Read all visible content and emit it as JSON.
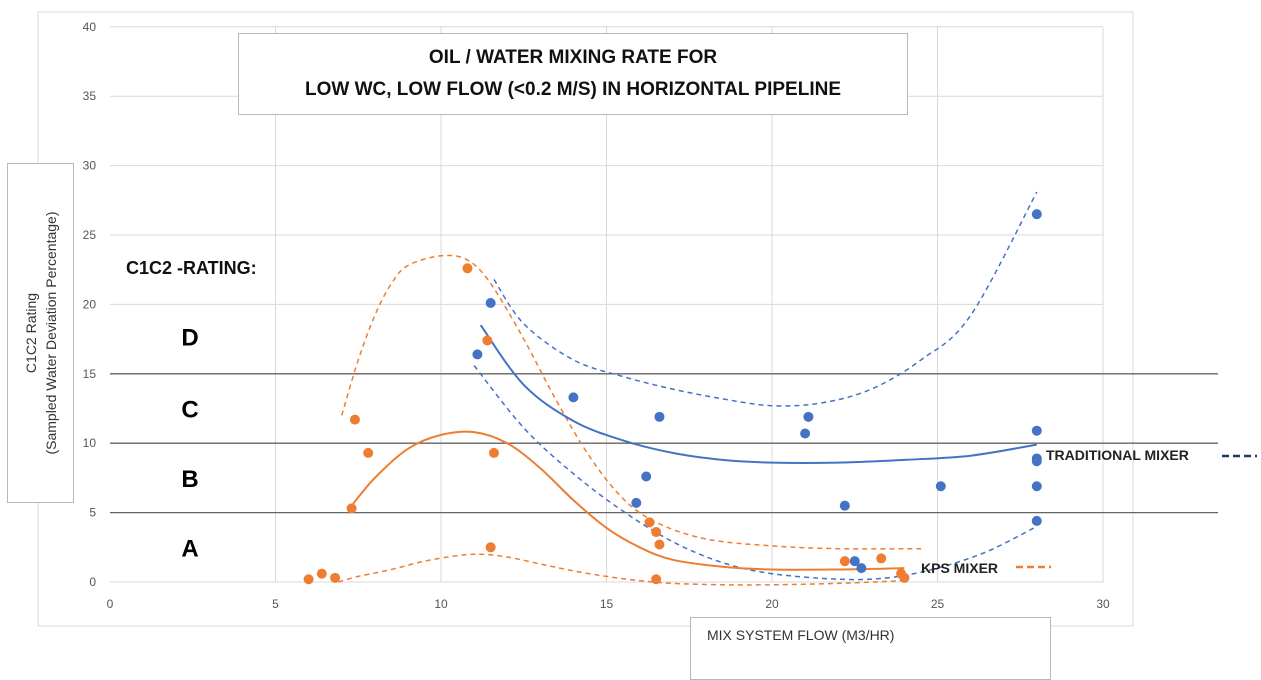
{
  "title_lines": [
    "OIL / WATER MIXING RATE FOR",
    "LOW WC, LOW FLOW (<0.2 M/S) IN HORIZONTAL PIPELINE"
  ],
  "rating_label": "C1C2 -RATING:",
  "colors": {
    "traditional": "#4472c4",
    "kps": "#ed7d31",
    "grid": "#d9d9d9",
    "zone_line": "#666666",
    "legend_trad_dash": "#1f3864"
  },
  "chart_data": {
    "type": "scatter",
    "title": "OIL / WATER MIXING RATE FOR LOW WC, LOW FLOW (<0.2 M/S) IN HORIZONTAL PIPELINE",
    "xlabel": "MIX SYSTEM FLOW (M3/HR)",
    "ylabel": [
      "C1C2 Rating",
      "(Sampled Water Deviation Percentage)"
    ],
    "xlim": [
      0,
      30
    ],
    "ylim": [
      0,
      40
    ],
    "x_ticks": [
      0,
      5,
      10,
      15,
      20,
      25,
      30
    ],
    "y_ticks": [
      0,
      5,
      10,
      15,
      20,
      25,
      30,
      35,
      40
    ],
    "grid": "vertical and horizontal major gridlines",
    "zone_boundaries": [
      5,
      10,
      15
    ],
    "zones": [
      {
        "label": "A",
        "y": 2.5
      },
      {
        "label": "B",
        "y": 7.5
      },
      {
        "label": "C",
        "y": 12.5
      },
      {
        "label": "D",
        "y": 17.7
      }
    ],
    "series": [
      {
        "name": "TRADITIONAL MIXER",
        "color": "#4472c4",
        "points": [
          [
            11.5,
            20.1
          ],
          [
            11.1,
            16.4
          ],
          [
            14.0,
            13.3
          ],
          [
            16.6,
            11.9
          ],
          [
            16.2,
            7.6
          ],
          [
            15.9,
            5.7
          ],
          [
            21.1,
            11.9
          ],
          [
            21.0,
            10.7
          ],
          [
            22.2,
            5.5
          ],
          [
            22.5,
            1.5
          ],
          [
            22.7,
            1.0
          ],
          [
            25.1,
            6.9
          ],
          [
            28.0,
            26.5
          ],
          [
            28.0,
            10.9
          ],
          [
            28.0,
            8.9
          ],
          [
            28.0,
            8.7
          ],
          [
            28.0,
            6.9
          ],
          [
            28.0,
            4.4
          ]
        ],
        "trend": [
          [
            11.2,
            18.5
          ],
          [
            12.5,
            14.2
          ],
          [
            14,
            11.6
          ],
          [
            15.5,
            10.2
          ],
          [
            17,
            9.3
          ],
          [
            18.5,
            8.8
          ],
          [
            20,
            8.6
          ],
          [
            22,
            8.6
          ],
          [
            24,
            8.8
          ],
          [
            26,
            9.1
          ],
          [
            28,
            9.9
          ]
        ],
        "upper_band": [
          [
            11.6,
            21.8
          ],
          [
            12.5,
            18.6
          ],
          [
            14,
            16.0
          ],
          [
            15.5,
            14.8
          ],
          [
            17,
            13.9
          ],
          [
            18.5,
            13.2
          ],
          [
            20,
            12.7
          ],
          [
            21.5,
            12.9
          ],
          [
            23,
            13.9
          ],
          [
            24.5,
            16.0
          ],
          [
            26,
            19.2
          ],
          [
            28,
            28.1
          ]
        ],
        "lower_band": [
          [
            11.0,
            15.6
          ],
          [
            12.5,
            11.1
          ],
          [
            14,
            7.8
          ],
          [
            15.5,
            5.1
          ],
          [
            17,
            2.9
          ],
          [
            18.5,
            1.4
          ],
          [
            20,
            0.6
          ],
          [
            22,
            0.2
          ],
          [
            23.5,
            0.3
          ],
          [
            25,
            1.0
          ],
          [
            26.5,
            2.2
          ],
          [
            28,
            4.0
          ]
        ]
      },
      {
        "name": "KPS MIXER",
        "color": "#ed7d31",
        "points": [
          [
            6.0,
            0.2
          ],
          [
            6.4,
            0.6
          ],
          [
            6.8,
            0.3
          ],
          [
            7.3,
            5.3
          ],
          [
            7.4,
            11.7
          ],
          [
            7.8,
            9.3
          ],
          [
            10.8,
            22.6
          ],
          [
            11.4,
            17.4
          ],
          [
            11.6,
            9.3
          ],
          [
            11.5,
            2.5
          ],
          [
            16.3,
            4.3
          ],
          [
            16.5,
            3.6
          ],
          [
            16.6,
            2.7
          ],
          [
            16.5,
            0.2
          ],
          [
            22.2,
            1.5
          ],
          [
            23.3,
            1.7
          ],
          [
            23.9,
            0.6
          ],
          [
            24.0,
            0.3
          ]
        ],
        "trend": [
          [
            7.3,
            5.5
          ],
          [
            8,
            7.5
          ],
          [
            9,
            9.6
          ],
          [
            10,
            10.6
          ],
          [
            11,
            10.8
          ],
          [
            12,
            10.0
          ],
          [
            13,
            8.2
          ],
          [
            14,
            5.9
          ],
          [
            15,
            3.9
          ],
          [
            16,
            2.5
          ],
          [
            17,
            1.6
          ],
          [
            18.5,
            1.1
          ],
          [
            20,
            0.9
          ],
          [
            22,
            0.9
          ],
          [
            24,
            1.0
          ]
        ],
        "upper_band": [
          [
            7.0,
            12.0
          ],
          [
            7.5,
            16.0
          ],
          [
            8,
            19.2
          ],
          [
            8.5,
            21.5
          ],
          [
            9,
            22.8
          ],
          [
            10,
            23.5
          ],
          [
            10.8,
            23.2
          ],
          [
            11.5,
            21.5
          ],
          [
            12.5,
            17.5
          ],
          [
            13.5,
            13.0
          ],
          [
            14.5,
            9.0
          ],
          [
            15.5,
            6.0
          ],
          [
            16.5,
            4.3
          ],
          [
            18,
            3.1
          ],
          [
            20,
            2.6
          ],
          [
            22,
            2.4
          ],
          [
            24.5,
            2.4
          ]
        ],
        "lower_band": [
          [
            6.9,
            0.0
          ],
          [
            7.5,
            0.4
          ],
          [
            8.5,
            0.9
          ],
          [
            9.5,
            1.5
          ],
          [
            10.5,
            1.9
          ],
          [
            11.2,
            2.0
          ],
          [
            12,
            1.8
          ],
          [
            13,
            1.3
          ],
          [
            14,
            0.8
          ],
          [
            15,
            0.4
          ],
          [
            16,
            0.1
          ],
          [
            17,
            -0.1
          ],
          [
            18.5,
            -0.2
          ],
          [
            20,
            -0.2
          ],
          [
            22,
            -0.1
          ],
          [
            24,
            0.1
          ]
        ]
      }
    ]
  },
  "legend": {
    "traditional": "TRADITIONAL MIXER",
    "kps": "KPS MIXER"
  }
}
